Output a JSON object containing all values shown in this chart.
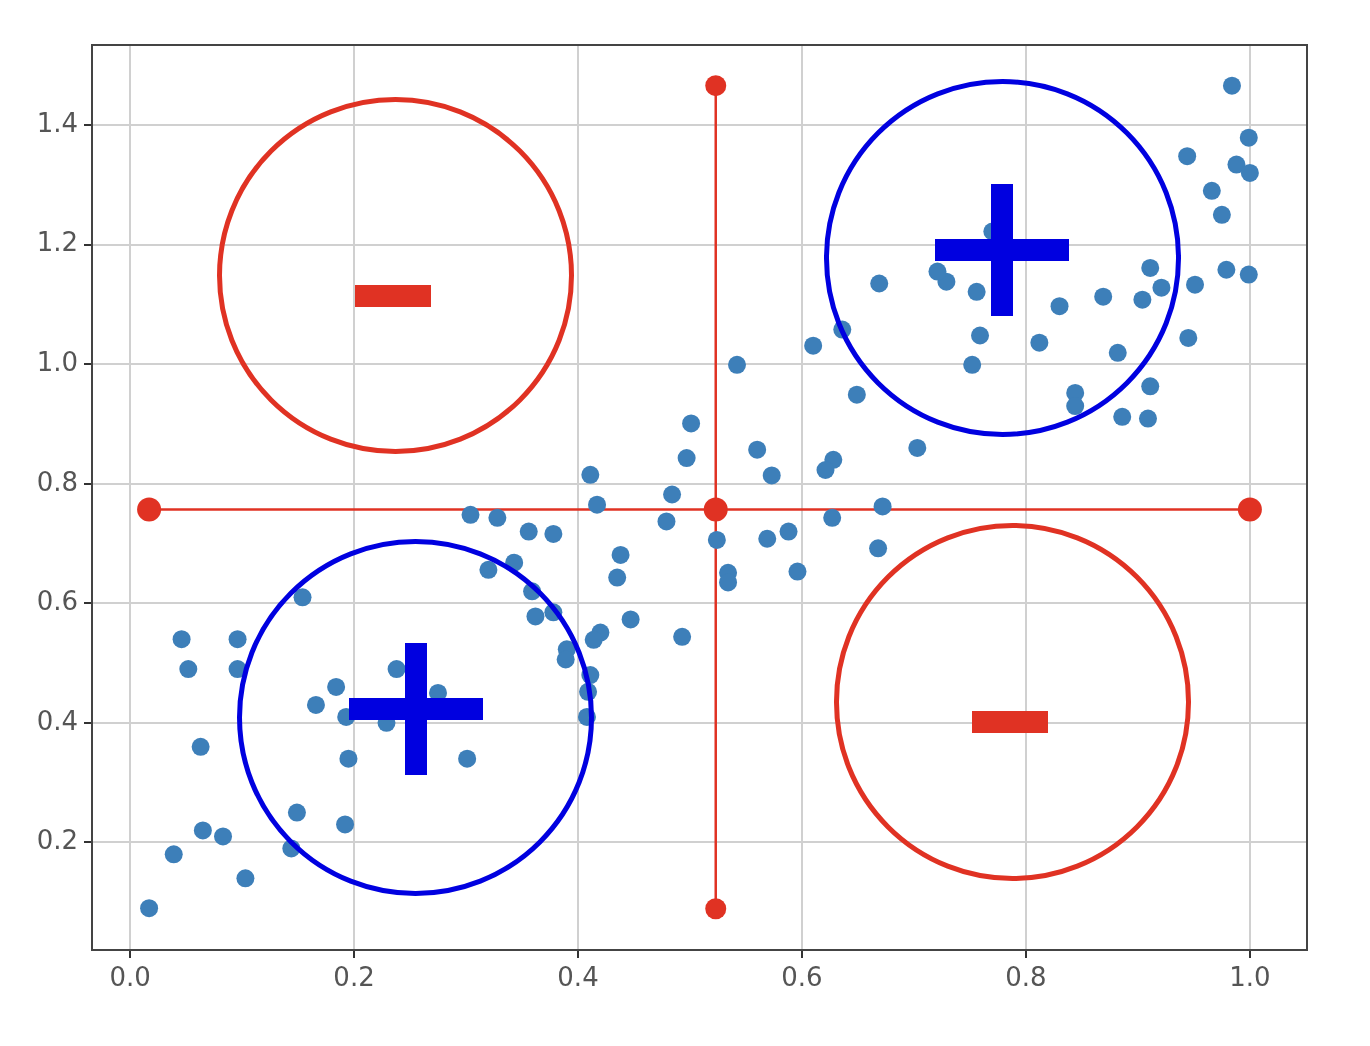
{
  "chart_data": {
    "type": "scatter",
    "xlim": [
      -0.034,
      1.051
    ],
    "ylim": [
      0.02,
      1.534
    ],
    "xticks": [
      {
        "value": 0,
        "label": "0.0"
      },
      0.2,
      0.4,
      0.6,
      0.8,
      {
        "value": 1,
        "label": "1.0"
      }
    ],
    "yticks": [
      0.2,
      0.4,
      0.6,
      0.8,
      {
        "value": 1,
        "label": "1.0"
      },
      1.2,
      1.4
    ],
    "grid": true,
    "legend": false,
    "marker": "circle",
    "series": [
      {
        "color": "#3d7fb9",
        "x": [
          0.017,
          0.039,
          0.103,
          0.065,
          0.083,
          0.144,
          0.149,
          0.192,
          0.063,
          0.046,
          0.052,
          0.096,
          0.096,
          0.154,
          0.166,
          0.184,
          0.193,
          0.195,
          0.229,
          0.238,
          0.275,
          0.301,
          0.304,
          0.328,
          0.356,
          0.378,
          0.343,
          0.32,
          0.359,
          0.378,
          0.362,
          0.411,
          0.417,
          0.438,
          0.435,
          0.447,
          0.42,
          0.414,
          0.39,
          0.493,
          0.484,
          0.479,
          0.497,
          0.501,
          0.542,
          0.56,
          0.573,
          0.61,
          0.628,
          0.621,
          0.627,
          0.588,
          0.569,
          0.524,
          0.534,
          0.534,
          0.596,
          0.389,
          0.411,
          0.409,
          0.408,
          0.984,
          0.999,
          0.944,
          0.988,
          1.0,
          0.966,
          0.975,
          0.979,
          0.999,
          0.951,
          0.945,
          0.911,
          0.921,
          0.904,
          0.911,
          0.909,
          0.886,
          0.882,
          0.869,
          0.83,
          0.812,
          0.844,
          0.844,
          0.759,
          0.752,
          0.756,
          0.729,
          0.721,
          0.77,
          0.669,
          0.636,
          0.649,
          0.703,
          0.672,
          0.668
        ],
        "values": [
          0.09,
          0.18,
          0.14,
          0.22,
          0.21,
          0.19,
          0.25,
          0.23,
          0.36,
          0.54,
          0.49,
          0.54,
          0.49,
          0.61,
          0.43,
          0.46,
          0.41,
          0.34,
          0.4,
          0.49,
          0.45,
          0.34,
          0.748,
          0.743,
          0.72,
          0.716,
          0.668,
          0.656,
          0.62,
          0.585,
          0.578,
          0.815,
          0.765,
          0.681,
          0.643,
          0.573,
          0.551,
          0.539,
          0.523,
          0.544,
          0.782,
          0.737,
          0.843,
          0.901,
          0.999,
          0.857,
          0.814,
          1.031,
          0.84,
          0.823,
          0.743,
          0.72,
          0.708,
          0.706,
          0.651,
          0.635,
          0.653,
          0.506,
          0.48,
          0.452,
          0.41,
          1.466,
          1.379,
          1.348,
          1.334,
          1.32,
          1.29,
          1.25,
          1.158,
          1.15,
          1.133,
          1.044,
          1.161,
          1.128,
          1.108,
          0.963,
          0.909,
          0.912,
          1.019,
          1.113,
          1.097,
          1.036,
          0.952,
          0.93,
          1.048,
          0.999,
          1.121,
          1.138,
          1.155,
          1.222,
          1.135,
          1.058,
          0.949,
          0.86,
          0.762,
          0.692
        ]
      },
      {
        "type": "line",
        "color": "#e03223",
        "x": [
          0.017,
          0.523,
          1.0
        ],
        "values": [
          0.757,
          0.757,
          0.757
        ]
      },
      {
        "type": "line",
        "color": "#e03223",
        "x": [
          0.523,
          0.523,
          0.523
        ],
        "values": [
          0.089,
          0.757,
          1.466
        ]
      }
    ]
  }
}
